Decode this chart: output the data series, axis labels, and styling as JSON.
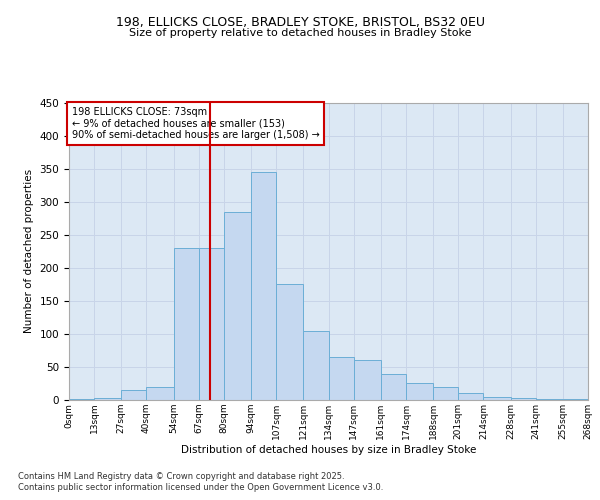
{
  "title": "198, ELLICKS CLOSE, BRADLEY STOKE, BRISTOL, BS32 0EU",
  "subtitle": "Size of property relative to detached houses in Bradley Stoke",
  "xlabel": "Distribution of detached houses by size in Bradley Stoke",
  "ylabel": "Number of detached properties",
  "annotation_line1": "198 ELLICKS CLOSE: 73sqm",
  "annotation_line2": "← 9% of detached houses are smaller (153)",
  "annotation_line3": "90% of semi-detached houses are larger (1,508) →",
  "property_size": 73,
  "bin_edges": [
    0,
    13,
    27,
    40,
    54,
    67,
    80,
    94,
    107,
    121,
    134,
    147,
    161,
    174,
    188,
    201,
    214,
    228,
    241,
    255,
    268
  ],
  "bin_labels": [
    "0sqm",
    "13sqm",
    "27sqm",
    "40sqm",
    "54sqm",
    "67sqm",
    "80sqm",
    "94sqm",
    "107sqm",
    "121sqm",
    "134sqm",
    "147sqm",
    "161sqm",
    "174sqm",
    "188sqm",
    "201sqm",
    "214sqm",
    "228sqm",
    "241sqm",
    "255sqm",
    "268sqm"
  ],
  "bar_values": [
    1,
    3,
    15,
    20,
    230,
    230,
    285,
    345,
    175,
    105,
    65,
    60,
    40,
    25,
    20,
    10,
    5,
    3,
    2,
    1
  ],
  "bar_color": "#c5d8f0",
  "bar_edge_color": "#6baed6",
  "line_color": "#cc0000",
  "annotation_box_color": "#cc0000",
  "grid_color": "#c8d4e8",
  "background_color": "#dce8f4",
  "ylim": [
    0,
    450
  ],
  "yticks": [
    0,
    50,
    100,
    150,
    200,
    250,
    300,
    350,
    400,
    450
  ],
  "footer_line1": "Contains HM Land Registry data © Crown copyright and database right 2025.",
  "footer_line2": "Contains public sector information licensed under the Open Government Licence v3.0."
}
